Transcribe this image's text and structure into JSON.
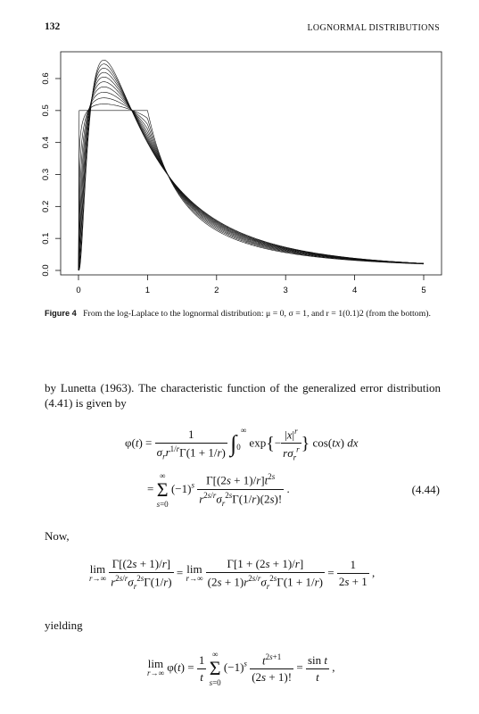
{
  "page": {
    "number": "132",
    "running_title": "LOGNORMAL DISTRIBUTIONS"
  },
  "figure": {
    "caption_label": "Figure 4",
    "caption_text": "From the log-Laplace to the lognormal distribution: μ = 0, σ = 1, and r = 1(0.1)2 (from the bottom)."
  },
  "chart_data": {
    "type": "line",
    "title": "",
    "xlabel": "",
    "ylabel": "",
    "xlim": [
      0,
      5
    ],
    "ylim": [
      0,
      0.65
    ],
    "x_ticks": [
      "0",
      "1",
      "2",
      "3",
      "4",
      "5"
    ],
    "y_ticks": [
      "0.0",
      "0.1",
      "0.2",
      "0.3",
      "0.4",
      "0.5",
      "0.6"
    ],
    "series": [
      {
        "r": 1.0
      },
      {
        "r": 1.1
      },
      {
        "r": 1.2
      },
      {
        "r": 1.3
      },
      {
        "r": 1.4
      },
      {
        "r": 1.5
      },
      {
        "r": 1.6
      },
      {
        "r": 1.7
      },
      {
        "r": 1.8
      },
      {
        "r": 1.9
      },
      {
        "r": 2.0
      }
    ],
    "grid": false,
    "legend": "none",
    "line_color": "#111111"
  },
  "text": {
    "para1": "by Lunetta (1963). The characteristic function of the generalized error distribution (4.41) is given by",
    "now": "Now,",
    "yielding": "yielding",
    "eq_number": "(4.44)"
  }
}
